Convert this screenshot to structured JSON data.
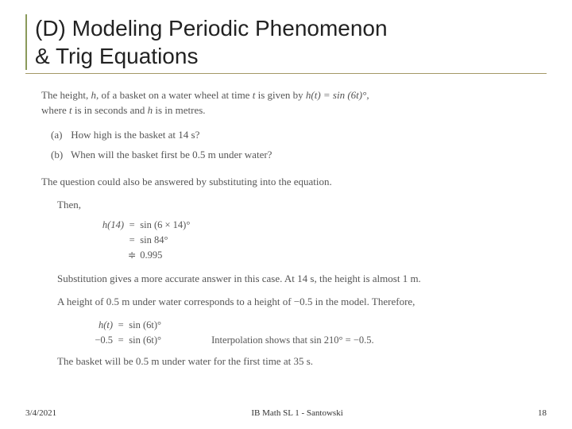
{
  "slide": {
    "title_line1": "(D) Modeling Periodic Phenomenon",
    "title_line2": "& Trig Equations"
  },
  "intro": {
    "line1_pre": "The height, ",
    "h": "h",
    "line1_mid": ", of a basket on a water wheel at time ",
    "t": "t",
    "line1_post": " is given by ",
    "formula": "h(t) = sin (6t)°,",
    "line2_pre": "where ",
    "line2_mid": " is in seconds and ",
    "line2_post": " is in metres."
  },
  "questions": {
    "a_label": "(a)",
    "a_text": "How high is the basket at 14 s?",
    "b_label": "(b)",
    "b_text": "When will the basket first be 0.5 m under water?"
  },
  "substitution_note": "The question could also be answered by substituting into the equation.",
  "then_label": "Then,",
  "eq1": {
    "r1_lhs": "h(14)",
    "r1_rhs": "sin (6 × 14)°",
    "r2_rhs": "sin 84°",
    "r3_rhs": "0.995",
    "approx": "≑"
  },
  "sub_accuracy": "Substitution gives a more accurate answer in this case. At 14 s, the height is almost 1 m.",
  "height_map": "A height of 0.5 m under water corresponds to a height of −0.5 in the model. Therefore,",
  "eq2": {
    "r1_lhs": "h(t)",
    "r1_rhs": "sin (6t)°",
    "r2_lhs": "−0.5",
    "r2_rhs": "sin (6t)°",
    "interp": "Interpolation shows that sin 210° = −0.5."
  },
  "conclusion": "The basket will be 0.5 m under water for the first time at 35 s.",
  "footer": {
    "date": "3/4/2021",
    "center": "IB Math SL 1 - Santowski",
    "page": "18"
  },
  "colors": {
    "title_border": "#8a9a5b",
    "rule": "#a49966",
    "text": "#555",
    "bg": "#ffffff"
  }
}
